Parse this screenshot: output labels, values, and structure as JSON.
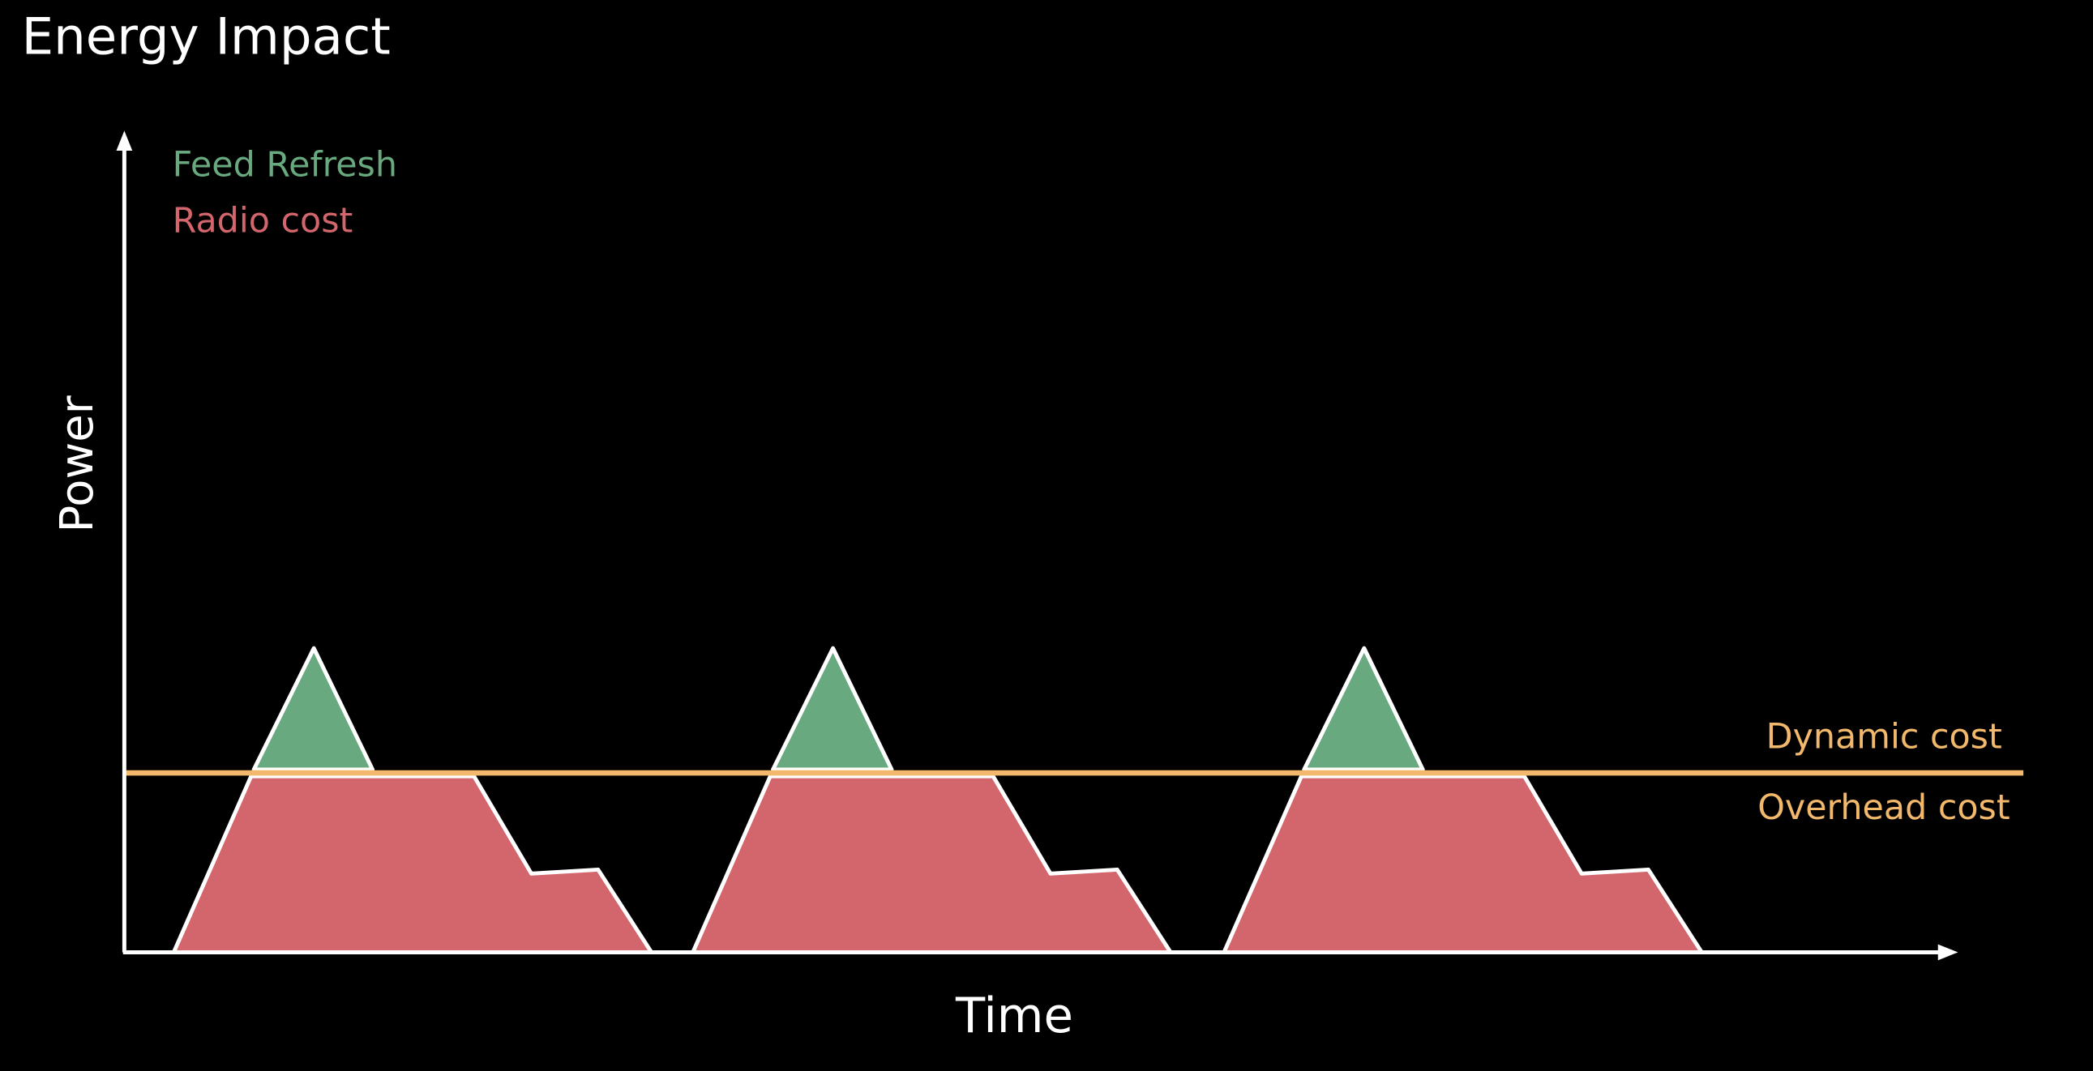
{
  "title": "Energy Impact",
  "legend": [
    "Feed Refresh",
    "Radio cost"
  ],
  "axes": {
    "y_label": "Power",
    "x_label": "Time"
  },
  "annotations": {
    "dynamic": "Dynamic cost",
    "overhead": "Overhead cost"
  }
}
